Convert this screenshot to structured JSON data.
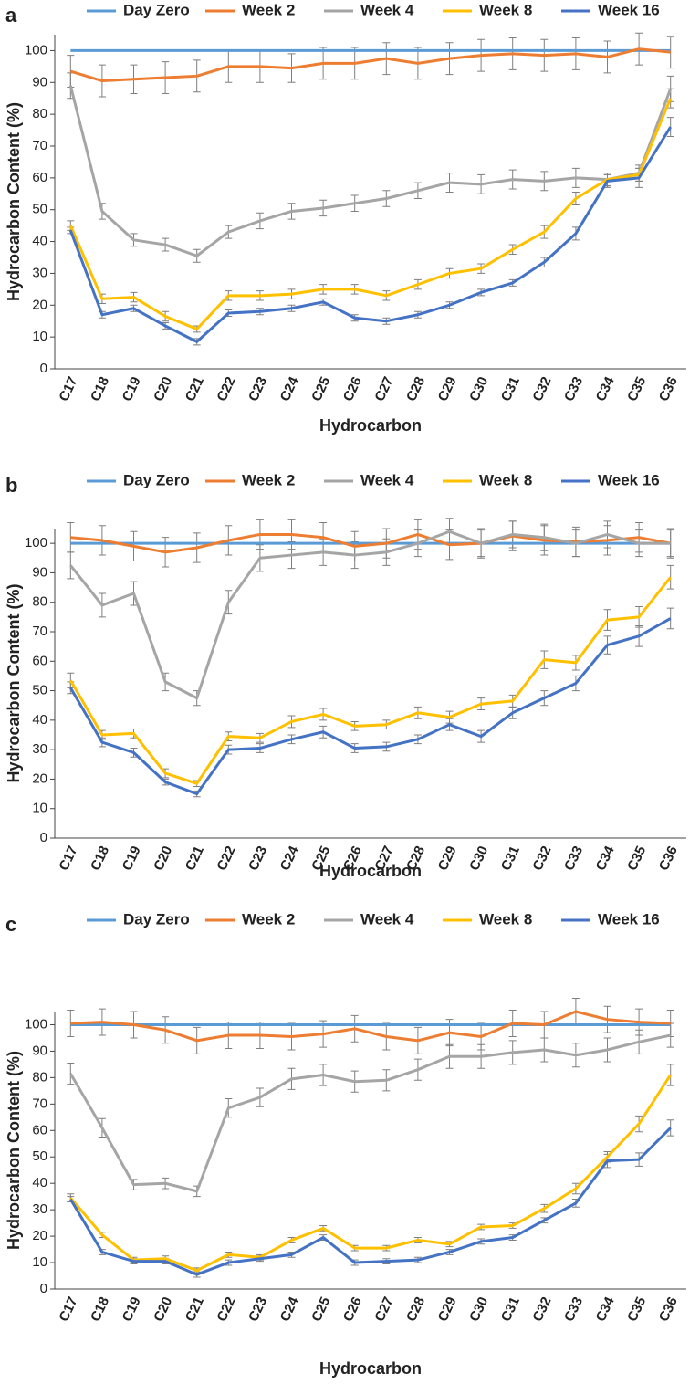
{
  "chart_data": [
    {
      "type": "line",
      "label": "a",
      "x_label": "Hydrocarbon",
      "y_label": "Hydrocarbon Content (%)",
      "categories": [
        "C17",
        "C18",
        "C19",
        "C20",
        "C21",
        "C22",
        "C23",
        "C24",
        "C25",
        "C26",
        "C27",
        "C28",
        "C29",
        "C30",
        "C31",
        "C32",
        "C33",
        "C34",
        "C35",
        "C36"
      ],
      "ylim": [
        0,
        105
      ],
      "yticks": [
        0,
        10,
        20,
        30,
        40,
        50,
        60,
        70,
        80,
        90,
        100
      ],
      "series": [
        {
          "name": "Day Zero",
          "color": "#5b9bd5",
          "values": [
            100,
            100,
            100,
            100,
            100,
            100,
            100,
            100,
            100,
            100,
            100,
            100,
            100,
            100,
            100,
            100,
            100,
            100,
            100,
            100
          ]
        },
        {
          "name": "Week 2",
          "color": "#ed7d31",
          "values": [
            93.5,
            90.5,
            91,
            91.5,
            92,
            95,
            95,
            94.5,
            96,
            96,
            97.5,
            96,
            97.5,
            98.5,
            99,
            98.5,
            99,
            98,
            100.5,
            99.5
          ],
          "errors": [
            5,
            5,
            4.5,
            5,
            5,
            5,
            5,
            4.5,
            5,
            5,
            5,
            5,
            5,
            5,
            5,
            5,
            5,
            5,
            5,
            5
          ]
        },
        {
          "name": "Week 4",
          "color": "#a5a5a5",
          "values": [
            89,
            49.5,
            40.5,
            39,
            35.5,
            43,
            46.5,
            49.5,
            50.5,
            52,
            53.5,
            56,
            58.5,
            58,
            59.5,
            59,
            60,
            59.5,
            61.5,
            88
          ],
          "errors": [
            4,
            2.5,
            2,
            2,
            2,
            2,
            2.5,
            2.5,
            2.5,
            2.5,
            2.5,
            2.5,
            3,
            3,
            3,
            3,
            3,
            2,
            2.5,
            4
          ]
        },
        {
          "name": "Week 8",
          "color": "#ffc000",
          "values": [
            45,
            22,
            22.5,
            16.5,
            12.5,
            23,
            23,
            23.5,
            25,
            25,
            23,
            26.5,
            30,
            31.5,
            37.5,
            43,
            53.5,
            59.5,
            61,
            85
          ],
          "errors": [
            1.5,
            1.5,
            1.5,
            1.5,
            1,
            1.5,
            1.5,
            1.5,
            1.5,
            1.5,
            1.5,
            1.5,
            1.5,
            1.5,
            1.5,
            2,
            2,
            2,
            2,
            3
          ]
        },
        {
          "name": "Week 16",
          "color": "#4472c4",
          "values": [
            43.5,
            17,
            19,
            13.5,
            8.5,
            17.5,
            18,
            19,
            21,
            16,
            15,
            17,
            20,
            24,
            27,
            33.5,
            42.5,
            59,
            60,
            76
          ],
          "errors": [
            1,
            1,
            1,
            1,
            1,
            1,
            1,
            1,
            1,
            1,
            1,
            1,
            1,
            1,
            1,
            1.5,
            2,
            2,
            3,
            3
          ]
        }
      ]
    },
    {
      "type": "line",
      "label": "b",
      "x_label": "Hydrocarbon",
      "y_label": "Hydrocarbon Content  (%)",
      "categories": [
        "C17",
        "C18",
        "C19",
        "C20",
        "C21",
        "C22",
        "C23",
        "C24",
        "C25",
        "C26",
        "C27",
        "C28",
        "C29",
        "C30",
        "C31",
        "C32",
        "C33",
        "C34",
        "C35",
        "C36"
      ],
      "ylim": [
        0,
        105
      ],
      "yticks": [
        0,
        10,
        20,
        30,
        40,
        50,
        60,
        70,
        80,
        90,
        100
      ],
      "series": [
        {
          "name": "Day Zero",
          "color": "#5b9bd5",
          "values": [
            100,
            100,
            100,
            100,
            100,
            100,
            100,
            100,
            100,
            100,
            100,
            100,
            100,
            100,
            100,
            100,
            100,
            100,
            100,
            100
          ]
        },
        {
          "name": "Week 2",
          "color": "#ed7d31",
          "values": [
            102,
            101,
            99,
            97,
            98.5,
            101,
            103,
            103,
            102,
            99,
            100,
            103,
            99.5,
            100,
            102.5,
            101,
            100.5,
            101,
            102,
            100
          ],
          "errors": [
            5,
            5,
            5,
            5,
            5,
            5,
            5,
            5,
            5,
            5,
            5,
            5,
            5,
            5,
            5,
            5,
            5,
            5,
            5,
            5
          ]
        },
        {
          "name": "Week 4",
          "color": "#a5a5a5",
          "values": [
            92.5,
            79,
            83,
            53,
            47.5,
            80,
            95,
            96,
            97,
            96,
            97,
            100,
            104,
            100,
            103,
            102,
            100,
            103,
            100,
            100
          ],
          "errors": [
            4.5,
            4,
            4,
            3,
            2.5,
            4,
            4.5,
            4.5,
            4.5,
            4.5,
            4.5,
            4.5,
            4.5,
            4.5,
            4.5,
            4.5,
            4.5,
            4.5,
            4.5,
            4.5
          ]
        },
        {
          "name": "Week 8",
          "color": "#ffc000",
          "values": [
            53.5,
            35,
            35.5,
            22,
            18.5,
            34.5,
            34,
            39.5,
            42,
            38,
            38.5,
            42.5,
            41,
            45.5,
            46.5,
            60.5,
            59.5,
            74,
            75,
            88.5
          ],
          "errors": [
            2.5,
            1.5,
            1.5,
            1.5,
            1,
            1.5,
            1.5,
            2,
            2,
            1.5,
            1.5,
            2,
            2,
            2,
            2,
            3,
            2.5,
            3.5,
            3.5,
            4
          ]
        },
        {
          "name": "Week 16",
          "color": "#4472c4",
          "values": [
            51,
            32.5,
            29,
            19,
            15,
            30,
            30.5,
            33.5,
            36,
            30.5,
            31,
            33.5,
            38.5,
            34.5,
            42.5,
            47.5,
            52.5,
            65.5,
            68.5,
            74.5
          ],
          "errors": [
            2,
            1.5,
            1.5,
            1,
            1,
            1.5,
            1.5,
            1.5,
            2,
            1.5,
            1.5,
            1.5,
            2,
            2,
            2,
            2.5,
            2.5,
            3,
            3.5,
            3.5
          ]
        }
      ]
    },
    {
      "type": "line",
      "label": "c",
      "x_label": "Hydrocarbon",
      "y_label": "Hydrocarbon Content  (%)",
      "categories": [
        "C17",
        "C18",
        "C19",
        "C20",
        "C21",
        "C22",
        "C23",
        "C24",
        "C25",
        "C26",
        "C27",
        "C28",
        "C29",
        "C30",
        "C31",
        "C32",
        "C33",
        "C34",
        "C35",
        "C36"
      ],
      "ylim": [
        0,
        105
      ],
      "yticks": [
        0,
        10,
        20,
        30,
        40,
        50,
        60,
        70,
        80,
        90,
        100
      ],
      "series": [
        {
          "name": "Day Zero",
          "color": "#5b9bd5",
          "values": [
            100,
            100,
            100,
            100,
            100,
            100,
            100,
            100,
            100,
            100,
            100,
            100,
            100,
            100,
            100,
            100,
            100,
            100,
            100,
            100
          ]
        },
        {
          "name": "Week 2",
          "color": "#ed7d31",
          "values": [
            100.5,
            101,
            100,
            98,
            94,
            96,
            96,
            95.5,
            96.5,
            98.5,
            95.5,
            94,
            97,
            95.5,
            100.5,
            100,
            105,
            102,
            101,
            100.5
          ],
          "errors": [
            5,
            5,
            5,
            5,
            5,
            5,
            5,
            5,
            5,
            5,
            5,
            5,
            5,
            5,
            5,
            5,
            5,
            5,
            5,
            5
          ]
        },
        {
          "name": "Week 4",
          "color": "#a5a5a5",
          "values": [
            81.5,
            61,
            39.5,
            40,
            37,
            68.5,
            72.5,
            79.5,
            81,
            78.5,
            79,
            83,
            88,
            88,
            89.5,
            90.5,
            88.5,
            90.5,
            93.5,
            96
          ],
          "errors": [
            4,
            3.5,
            2,
            2,
            2,
            3.5,
            3.5,
            4,
            4,
            4,
            4,
            4,
            4.5,
            4.5,
            4.5,
            4.5,
            4.5,
            4.5,
            4.5,
            4.5
          ]
        },
        {
          "name": "Week 8",
          "color": "#ffc000",
          "values": [
            34.5,
            20.5,
            11,
            11.5,
            7,
            13,
            12,
            18.5,
            23,
            15.5,
            15.5,
            18.5,
            17,
            23.5,
            24,
            30.5,
            38,
            50,
            62.5,
            81
          ],
          "errors": [
            1.5,
            1,
            1,
            1,
            1,
            1,
            1,
            1,
            1,
            1,
            1,
            1,
            1,
            1,
            1,
            1.5,
            2,
            2,
            3,
            4
          ]
        },
        {
          "name": "Week 16",
          "color": "#4472c4",
          "values": [
            34,
            14,
            10.5,
            10.5,
            5.5,
            10,
            11.5,
            13,
            19.5,
            10,
            10.5,
            11,
            14,
            18,
            19.5,
            26,
            32.5,
            48.5,
            49,
            61
          ],
          "errors": [
            1,
            1,
            1,
            1,
            1,
            1,
            1,
            1,
            1,
            1,
            1,
            1,
            1,
            1,
            1,
            1,
            1.5,
            2.5,
            2.5,
            3
          ]
        }
      ]
    }
  ]
}
